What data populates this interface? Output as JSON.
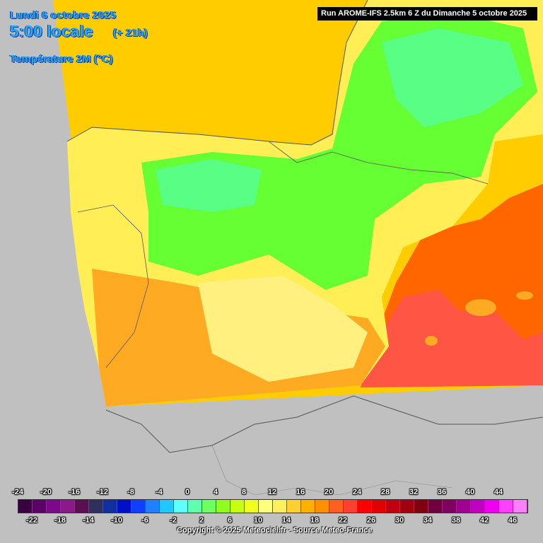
{
  "header": {
    "date_line": "Lundi 6 octobre 2025",
    "time_line": "5:00 locale",
    "offset": "(+ 21h)",
    "parameter": "Température 2M (°C)"
  },
  "run_info": "Run AROME-IFS 2.5km 6 Z du Dimanche 5 octobre 2025",
  "copyright": "Copyright © 2025 Meteociel.fr - Source Meteo-France",
  "legend": {
    "ticks_top": [
      "-24",
      "-20",
      "-16",
      "-12",
      "-8",
      "-4",
      "0",
      "4",
      "8",
      "12",
      "16",
      "20",
      "24",
      "28",
      "32",
      "36",
      "40",
      "44"
    ],
    "ticks_bottom": [
      "-22",
      "-18",
      "-14",
      "-10",
      "-6",
      "-2",
      "2",
      "6",
      "10",
      "14",
      "18",
      "22",
      "26",
      "30",
      "34",
      "38",
      "42",
      "46"
    ],
    "colors": [
      "#3a0040",
      "#5a0066",
      "#7a0a8a",
      "#8a1a8a",
      "#5a1050",
      "#303060",
      "#1030a0",
      "#0010c8",
      "#1040ff",
      "#2080ff",
      "#20c8ff",
      "#60ffff",
      "#60ffb0",
      "#70ff60",
      "#90ff20",
      "#c8ff10",
      "#f0ff20",
      "#ffff80",
      "#fff060",
      "#ffd030",
      "#ffb000",
      "#ff9000",
      "#ff6020",
      "#ff4030",
      "#ff0000",
      "#e00000",
      "#c00010",
      "#a00010",
      "#800010",
      "#700040",
      "#800060",
      "#a00090",
      "#c000c0",
      "#f000f0",
      "#ff40ff",
      "#ff80ff"
    ]
  },
  "map_colors": {
    "sea": "#ffcc00",
    "outside": "#c0c0c0",
    "hot_sea": "#ff6600",
    "hot_core": "#ff5544",
    "mild": "#ffee55",
    "cool": "#66ff33",
    "cold": "#55ff99",
    "warm": "#ffaa22",
    "border": "#555555"
  }
}
